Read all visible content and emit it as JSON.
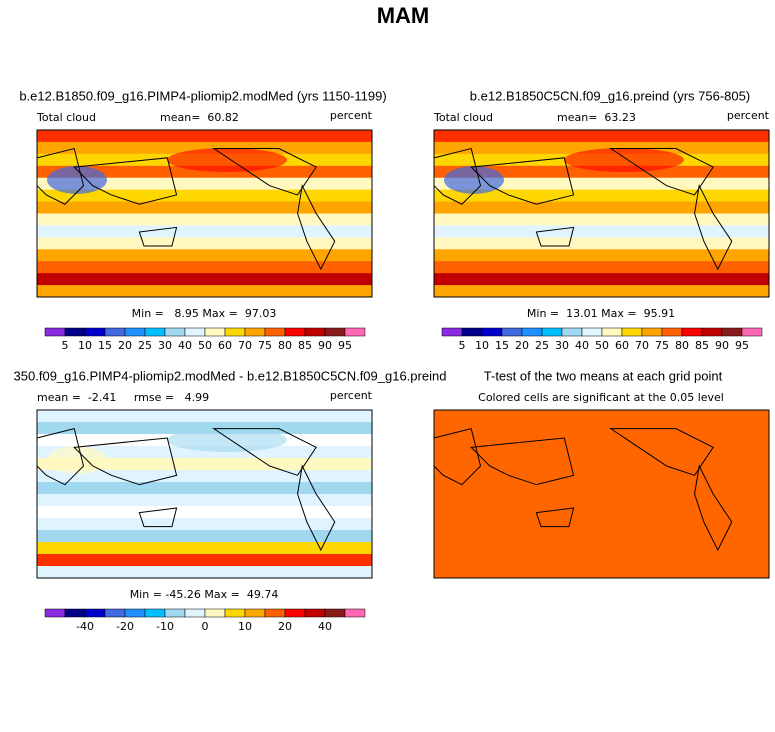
{
  "title": "MAM",
  "panels": [
    {
      "title": "b.e12.B1850.f09_g16.PIMP4-pliomip2.modMed (yrs 1150-1199)",
      "left_label": "Total cloud",
      "center_label": "mean=  60.82",
      "right_label": "percent",
      "min_max": "Min =   8.95 Max =  97.03",
      "colorbar_labels": [
        "5",
        "10",
        "15",
        "20",
        "25",
        "30",
        "40",
        "50",
        "60",
        "70",
        "75",
        "80",
        "85",
        "90",
        "95"
      ]
    },
    {
      "title": "b.e12.B1850C5CN.f09_g16.preind (yrs 756-805)",
      "left_label": "Total cloud",
      "center_label": "mean=  63.23",
      "right_label": "percent",
      "min_max": "Min =  13.01 Max =  95.91",
      "colorbar_labels": [
        "5",
        "10",
        "15",
        "20",
        "25",
        "30",
        "40",
        "50",
        "60",
        "70",
        "75",
        "80",
        "85",
        "90",
        "95"
      ]
    },
    {
      "title": "350.f09_g16.PIMP4-pliomip2.modMed - b.e12.B1850C5CN.f09_g16.preind",
      "left_label": "mean =  -2.41     rmse =   4.99",
      "right_label": "percent",
      "min_max": "Min = -45.26 Max =  49.74",
      "colorbar_labels": [
        "-40",
        "-20",
        "-10",
        "0",
        "10",
        "20",
        "40"
      ]
    },
    {
      "title": "T-test of the two means at each grid point",
      "subtitle": "Colored cells are significant at the 0.05 level"
    }
  ]
}
